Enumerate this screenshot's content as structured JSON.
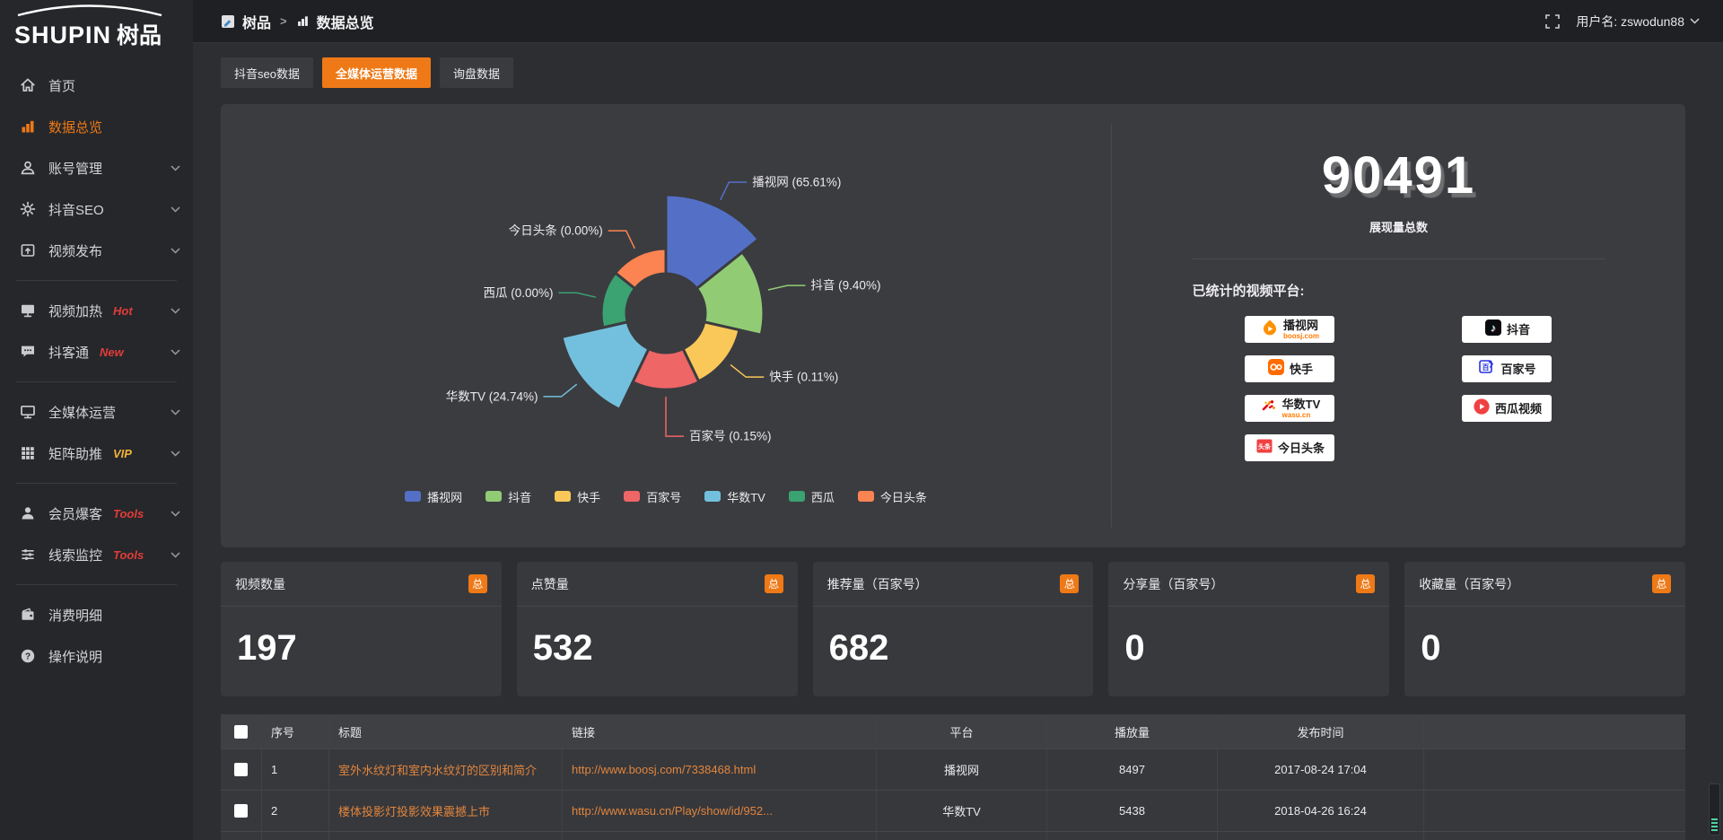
{
  "logo": {
    "en": "SHUPIN",
    "cn": "树品"
  },
  "topbar": {
    "breadcrumb": {
      "root": "树品",
      "separator": ">",
      "current": "数据总览"
    },
    "user": "用户名: zswodun88"
  },
  "sidebar": {
    "items": [
      {
        "key": "home",
        "label": "首页",
        "icon": "home-icon"
      },
      {
        "key": "data-overview",
        "label": "数据总览",
        "icon": "bar-chart-icon",
        "active": true
      },
      {
        "key": "account-manage",
        "label": "账号管理",
        "icon": "user-icon",
        "expandable": true
      },
      {
        "key": "douyin-seo",
        "label": "抖音SEO",
        "icon": "gear-icon",
        "expandable": true
      },
      {
        "key": "video-publish",
        "label": "视频发布",
        "icon": "upload-box-icon",
        "expandable": true
      },
      {
        "divider": true
      },
      {
        "key": "video-heat",
        "label": "视频加热",
        "icon": "monitor-icon",
        "expandable": true,
        "badge": "Hot",
        "badge_color": "#e23c39"
      },
      {
        "key": "douketong",
        "label": "抖客通",
        "icon": "chat-bubble-icon",
        "expandable": true,
        "badge": "New",
        "badge_color": "#e23c39"
      },
      {
        "divider": true
      },
      {
        "key": "media-operation",
        "label": "全媒体运营",
        "icon": "screen-icon",
        "expandable": true
      },
      {
        "key": "matrix-boost",
        "label": "矩阵助推",
        "icon": "grid-icon",
        "expandable": true,
        "badge": "VIP",
        "badge_color": "#f0b43c"
      },
      {
        "divider": true
      },
      {
        "key": "member-baoke",
        "label": "会员爆客",
        "icon": "person-icon",
        "expandable": true,
        "badge": "Tools",
        "badge_color": "#e23c39"
      },
      {
        "key": "leads-monitor",
        "label": "线索监控",
        "icon": "sliders-icon",
        "expandable": true,
        "badge": "Tools",
        "badge_color": "#e23c39"
      },
      {
        "divider": true
      },
      {
        "key": "expense-detail",
        "label": "消费明细",
        "icon": "wallet-icon"
      },
      {
        "key": "operation-guide",
        "label": "操作说明",
        "icon": "help-circle-icon"
      }
    ]
  },
  "tabs": [
    {
      "key": "douyin-seo-data",
      "label": "抖音seo数据",
      "active": false
    },
    {
      "key": "media-operation-data",
      "label": "全媒体运营数据",
      "active": true
    },
    {
      "key": "inquiry-data",
      "label": "询盘数据",
      "active": false
    }
  ],
  "chart_data": {
    "type": "pie",
    "variant": "nightingale_rose",
    "unit": "%",
    "label_format": "{name} ({value}%)",
    "legend_position": "bottom",
    "series": [
      {
        "name": "播视网",
        "value": 65.61,
        "color": "#5470c6"
      },
      {
        "name": "抖音",
        "value": 9.4,
        "color": "#91cc75"
      },
      {
        "name": "快手",
        "value": 0.11,
        "color": "#fac858"
      },
      {
        "name": "百家号",
        "value": 0.15,
        "color": "#ee6666"
      },
      {
        "name": "华数TV",
        "value": 24.74,
        "color": "#73c0de"
      },
      {
        "name": "西瓜",
        "value": 0.0,
        "color": "#3ba272"
      },
      {
        "name": "今日头条",
        "value": 0.0,
        "color": "#fc8452"
      }
    ]
  },
  "summary": {
    "total_value": "90491",
    "total_label": "展现量总数",
    "platforms_label": "已统计的视频平台:",
    "platforms": [
      {
        "key": "boosj",
        "name": "播视网",
        "sub": "boosj.com"
      },
      {
        "key": "douyin",
        "name": "抖音",
        "sub": ""
      },
      {
        "key": "kuaishou",
        "name": "快手",
        "sub": ""
      },
      {
        "key": "baijiahao",
        "name": "百家号",
        "sub": ""
      },
      {
        "key": "wasu",
        "name": "华数TV",
        "sub": "wasu.cn"
      },
      {
        "key": "xigua",
        "name": "西瓜视频",
        "sub": ""
      },
      {
        "key": "toutiao",
        "name": "今日头条",
        "sub": ""
      }
    ]
  },
  "stat_cards": [
    {
      "title": "视频数量",
      "badge": "总",
      "value": "197"
    },
    {
      "title": "点赞量",
      "badge": "总",
      "value": "532"
    },
    {
      "title": "推荐量（百家号）",
      "badge": "总",
      "value": "682"
    },
    {
      "title": "分享量（百家号）",
      "badge": "总",
      "value": "0"
    },
    {
      "title": "收藏量（百家号）",
      "badge": "总",
      "value": "0"
    }
  ],
  "table": {
    "headers": [
      "序号",
      "标题",
      "链接",
      "平台",
      "播放量",
      "发布时间"
    ],
    "rows": [
      {
        "seq": "1",
        "title": "室外水纹灯和室内水纹灯的区别和简介",
        "link": "http://www.boosj.com/7338468.html",
        "platform": "播视网",
        "plays": "8497",
        "time": "2017-08-24 17:04"
      },
      {
        "seq": "2",
        "title": "楼体投影灯投影效果震撼上市",
        "link": "http://www.wasu.cn/Play/show/id/952...",
        "platform": "华数TV",
        "plays": "5438",
        "time": "2018-04-26 16:24"
      }
    ]
  },
  "colors": {
    "accent": "#ee7916",
    "hot_badge": "#e23c39",
    "vip_badge": "#f0b43c",
    "link": "#e2853c"
  }
}
